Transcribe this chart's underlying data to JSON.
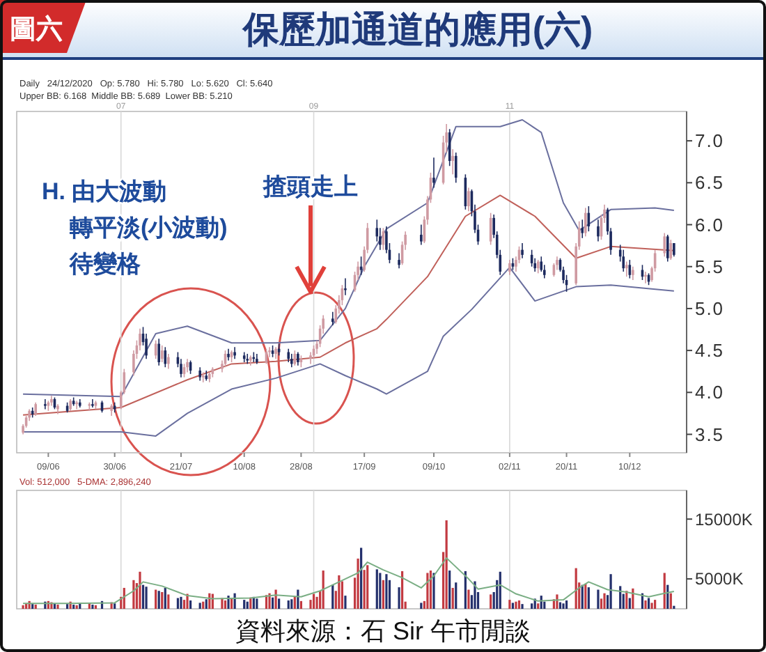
{
  "chart_data": [
    {
      "type": "candlestick",
      "title": "保歷加通道的應用(六)",
      "annotations": [
        "圖六",
        "Daily   24/12/2020   Op: 5.780   Hi: 5.780   Lo: 5.620   Cl: 5.640",
        "Upper BB: 6.168  Middle BB: 5.689  Lower BB: 5.210",
        "H. 由大波動",
        "轉平淡(小波動)",
        "待變格",
        {
          "text": "揸頭走上",
          "x": "2020-08-31",
          "y": 5.2
        }
      ],
      "x": [
        "2020-06-01",
        "2020-06-02",
        "2020-06-03",
        "2020-06-04",
        "2020-06-05",
        "2020-06-08",
        "2020-06-09",
        "2020-06-10",
        "2020-06-11",
        "2020-06-12",
        "2020-06-15",
        "2020-06-16",
        "2020-06-17",
        "2020-06-18",
        "2020-06-19",
        "2020-06-22",
        "2020-06-23",
        "2020-06-24",
        "2020-06-26",
        "2020-06-29",
        "2020-06-30",
        "2020-07-02",
        "2020-07-03",
        "2020-07-06",
        "2020-07-07",
        "2020-07-08",
        "2020-07-09",
        "2020-07-10",
        "2020-07-13",
        "2020-07-14",
        "2020-07-15",
        "2020-07-16",
        "2020-07-17",
        "2020-07-20",
        "2020-07-21",
        "2020-07-22",
        "2020-07-23",
        "2020-07-24",
        "2020-07-27",
        "2020-07-28",
        "2020-07-29",
        "2020-07-30",
        "2020-07-31",
        "2020-08-03",
        "2020-08-04",
        "2020-08-05",
        "2020-08-06",
        "2020-08-07",
        "2020-08-10",
        "2020-08-11",
        "2020-08-12",
        "2020-08-13",
        "2020-08-14",
        "2020-08-17",
        "2020-08-18",
        "2020-08-19",
        "2020-08-20",
        "2020-08-21",
        "2020-08-24",
        "2020-08-25",
        "2020-08-26",
        "2020-08-27",
        "2020-08-28",
        "2020-08-31",
        "2020-09-01",
        "2020-09-02",
        "2020-09-03",
        "2020-09-04",
        "2020-09-07",
        "2020-09-08",
        "2020-09-09",
        "2020-09-10",
        "2020-09-11",
        "2020-09-14",
        "2020-09-15",
        "2020-09-16",
        "2020-09-17",
        "2020-09-18",
        "2020-09-21",
        "2020-09-22",
        "2020-09-23",
        "2020-09-24",
        "2020-09-25",
        "2020-09-28",
        "2020-09-29",
        "2020-09-30",
        "2020-10-05",
        "2020-10-06",
        "2020-10-07",
        "2020-10-08",
        "2020-10-09",
        "2020-10-12",
        "2020-10-13",
        "2020-10-14",
        "2020-10-15",
        "2020-10-16",
        "2020-10-19",
        "2020-10-20",
        "2020-10-21",
        "2020-10-22",
        "2020-10-23",
        "2020-10-27",
        "2020-10-28",
        "2020-10-29",
        "2020-10-30",
        "2020-11-02",
        "2020-11-03",
        "2020-11-04",
        "2020-11-05",
        "2020-11-06",
        "2020-11-09",
        "2020-11-10",
        "2020-11-11",
        "2020-11-12",
        "2020-11-13",
        "2020-11-16",
        "2020-11-17",
        "2020-11-18",
        "2020-11-19",
        "2020-11-20",
        "2020-11-23",
        "2020-11-24",
        "2020-11-25",
        "2020-11-26",
        "2020-11-27",
        "2020-11-30",
        "2020-12-01",
        "2020-12-02",
        "2020-12-03",
        "2020-12-04",
        "2020-12-07",
        "2020-12-08",
        "2020-12-09",
        "2020-12-10",
        "2020-12-11",
        "2020-12-14",
        "2020-12-15",
        "2020-12-16",
        "2020-12-17",
        "2020-12-18",
        "2020-12-21",
        "2020-12-22",
        "2020-12-23",
        "2020-12-24"
      ],
      "ohlc": [
        [
          3.52,
          3.62,
          3.5,
          3.6
        ],
        [
          3.6,
          3.72,
          3.58,
          3.7
        ],
        [
          3.7,
          3.8,
          3.66,
          3.78
        ],
        [
          3.78,
          3.82,
          3.7,
          3.74
        ],
        [
          3.74,
          3.88,
          3.72,
          3.86
        ],
        [
          3.86,
          3.92,
          3.8,
          3.84
        ],
        [
          3.84,
          3.9,
          3.78,
          3.88
        ],
        [
          3.88,
          3.96,
          3.84,
          3.92
        ],
        [
          3.92,
          3.94,
          3.8,
          3.82
        ],
        [
          3.8,
          3.86,
          3.74,
          3.84
        ],
        [
          3.84,
          3.88,
          3.76,
          3.78
        ],
        [
          3.8,
          3.92,
          3.78,
          3.9
        ],
        [
          3.9,
          3.94,
          3.84,
          3.86
        ],
        [
          3.86,
          3.9,
          3.8,
          3.88
        ],
        [
          3.88,
          3.92,
          3.82,
          3.84
        ],
        [
          3.84,
          3.88,
          3.78,
          3.86
        ],
        [
          3.86,
          3.92,
          3.82,
          3.84
        ],
        [
          3.84,
          3.9,
          3.8,
          3.88
        ],
        [
          3.88,
          3.9,
          3.76,
          3.78
        ],
        [
          3.78,
          3.86,
          3.72,
          3.84
        ],
        [
          3.84,
          3.88,
          3.76,
          3.8
        ],
        [
          3.82,
          4.02,
          3.8,
          4.0
        ],
        [
          4.0,
          4.28,
          3.98,
          4.24
        ],
        [
          4.24,
          4.5,
          4.2,
          4.46
        ],
        [
          4.46,
          4.62,
          4.4,
          4.56
        ],
        [
          4.56,
          4.76,
          4.5,
          4.7
        ],
        [
          4.7,
          4.78,
          4.56,
          4.6
        ],
        [
          4.64,
          4.7,
          4.4,
          4.44
        ],
        [
          4.44,
          4.62,
          4.4,
          4.58
        ],
        [
          4.58,
          4.64,
          4.32,
          4.36
        ],
        [
          4.4,
          4.56,
          4.36,
          4.5
        ],
        [
          4.5,
          4.54,
          4.3,
          4.34
        ],
        [
          4.34,
          4.46,
          4.28,
          4.42
        ],
        [
          4.42,
          4.48,
          4.3,
          4.34
        ],
        [
          4.34,
          4.4,
          4.18,
          4.22
        ],
        [
          4.22,
          4.34,
          4.18,
          4.3
        ],
        [
          4.3,
          4.4,
          4.24,
          4.36
        ],
        [
          4.36,
          4.38,
          4.22,
          4.26
        ],
        [
          4.26,
          4.3,
          4.14,
          4.18
        ],
        [
          4.18,
          4.24,
          4.12,
          4.2
        ],
        [
          4.2,
          4.26,
          4.14,
          4.16
        ],
        [
          4.16,
          4.24,
          4.12,
          4.22
        ],
        [
          4.22,
          4.3,
          4.18,
          4.28
        ],
        [
          4.28,
          4.38,
          4.24,
          4.34
        ],
        [
          4.34,
          4.5,
          4.3,
          4.46
        ],
        [
          4.46,
          4.52,
          4.38,
          4.42
        ],
        [
          4.42,
          4.5,
          4.36,
          4.48
        ],
        [
          4.48,
          4.54,
          4.4,
          4.44
        ],
        [
          4.44,
          4.48,
          4.36,
          4.4
        ],
        [
          4.4,
          4.46,
          4.34,
          4.38
        ],
        [
          4.38,
          4.44,
          4.32,
          4.42
        ],
        [
          4.42,
          4.48,
          4.36,
          4.4
        ],
        [
          4.4,
          4.46,
          4.34,
          4.36
        ],
        [
          4.36,
          4.52,
          4.34,
          4.48
        ],
        [
          4.48,
          4.54,
          4.42,
          4.5
        ],
        [
          4.5,
          4.56,
          4.42,
          4.46
        ],
        [
          4.46,
          4.54,
          4.4,
          4.52
        ],
        [
          4.52,
          4.58,
          4.44,
          4.48
        ],
        [
          4.48,
          4.52,
          4.36,
          4.4
        ],
        [
          4.4,
          4.46,
          4.3,
          4.34
        ],
        [
          4.34,
          4.5,
          4.32,
          4.46
        ],
        [
          4.46,
          4.48,
          4.32,
          4.36
        ],
        [
          4.36,
          4.44,
          4.3,
          4.4
        ],
        [
          4.4,
          4.48,
          4.34,
          4.44
        ],
        [
          4.44,
          4.56,
          4.4,
          4.52
        ],
        [
          4.52,
          4.62,
          4.46,
          4.58
        ],
        [
          4.58,
          4.8,
          4.54,
          4.76
        ],
        [
          4.76,
          4.92,
          4.7,
          4.88
        ],
        [
          4.88,
          4.96,
          4.8,
          4.84
        ],
        [
          4.84,
          5.04,
          4.82,
          5.0
        ],
        [
          5.0,
          5.16,
          4.94,
          5.1
        ],
        [
          5.1,
          5.28,
          5.04,
          5.24
        ],
        [
          5.24,
          5.36,
          5.16,
          5.22
        ],
        [
          5.22,
          5.44,
          5.2,
          5.4
        ],
        [
          5.4,
          5.56,
          5.34,
          5.5
        ],
        [
          5.5,
          5.62,
          5.4,
          5.46
        ],
        [
          5.46,
          5.74,
          5.44,
          5.7
        ],
        [
          5.7,
          6.02,
          5.66,
          5.96
        ],
        [
          5.96,
          6.06,
          5.8,
          5.86
        ],
        [
          5.86,
          5.96,
          5.7,
          5.76
        ],
        [
          5.76,
          5.96,
          5.7,
          5.92
        ],
        [
          5.92,
          5.98,
          5.66,
          5.7
        ],
        [
          5.7,
          5.78,
          5.54,
          5.58
        ],
        [
          5.58,
          5.66,
          5.48,
          5.52
        ],
        [
          5.54,
          5.8,
          5.52,
          5.76
        ],
        [
          5.76,
          5.92,
          5.7,
          5.88
        ],
        [
          5.88,
          6.0,
          5.76,
          5.8
        ],
        [
          5.8,
          6.1,
          5.78,
          6.06
        ],
        [
          6.06,
          6.34,
          6.0,
          6.3
        ],
        [
          6.3,
          6.62,
          6.26,
          6.56
        ],
        [
          6.56,
          6.8,
          6.44,
          6.5
        ],
        [
          6.5,
          7.06,
          6.48,
          6.98
        ],
        [
          6.98,
          7.2,
          6.86,
          7.1
        ],
        [
          7.1,
          7.14,
          6.7,
          6.76
        ],
        [
          6.76,
          6.9,
          6.6,
          6.82
        ],
        [
          6.82,
          6.86,
          6.5,
          6.56
        ],
        [
          6.56,
          6.6,
          6.18,
          6.22
        ],
        [
          6.22,
          6.44,
          6.16,
          6.4
        ],
        [
          6.4,
          6.42,
          6.1,
          6.16
        ],
        [
          6.16,
          6.24,
          5.9,
          5.94
        ],
        [
          5.94,
          6.0,
          5.76,
          5.8
        ],
        [
          5.8,
          6.14,
          5.76,
          6.08
        ],
        [
          6.08,
          6.12,
          5.84,
          5.88
        ],
        [
          5.88,
          5.92,
          5.6,
          5.64
        ],
        [
          5.64,
          5.7,
          5.4,
          5.44
        ],
        [
          5.44,
          5.58,
          5.4,
          5.54
        ],
        [
          5.54,
          5.6,
          5.46,
          5.5
        ],
        [
          5.5,
          5.62,
          5.44,
          5.58
        ],
        [
          5.58,
          5.74,
          5.54,
          5.7
        ],
        [
          5.7,
          5.78,
          5.6,
          5.64
        ],
        [
          5.64,
          5.7,
          5.5,
          5.54
        ],
        [
          5.54,
          5.6,
          5.44,
          5.48
        ],
        [
          5.48,
          5.58,
          5.42,
          5.56
        ],
        [
          5.56,
          5.62,
          5.44,
          5.46
        ],
        [
          5.46,
          5.52,
          5.36,
          5.4
        ],
        [
          5.4,
          5.54,
          5.38,
          5.52
        ],
        [
          5.52,
          5.62,
          5.46,
          5.58
        ],
        [
          5.58,
          5.6,
          5.44,
          5.46
        ],
        [
          5.46,
          5.5,
          5.3,
          5.34
        ],
        [
          5.34,
          5.4,
          5.2,
          5.28
        ],
        [
          5.3,
          5.78,
          5.28,
          5.74
        ],
        [
          5.74,
          6.04,
          5.7,
          5.96
        ],
        [
          5.96,
          6.06,
          5.84,
          5.9
        ],
        [
          5.9,
          6.2,
          5.86,
          6.14
        ],
        [
          6.14,
          6.22,
          5.92,
          5.98
        ],
        [
          5.98,
          6.06,
          5.8,
          5.86
        ],
        [
          5.86,
          6.12,
          5.82,
          6.08
        ],
        [
          6.08,
          6.24,
          6.02,
          6.18
        ],
        [
          6.18,
          6.2,
          5.88,
          5.92
        ],
        [
          5.92,
          5.96,
          5.64,
          5.7
        ],
        [
          5.7,
          5.76,
          5.56,
          5.62
        ],
        [
          5.62,
          5.7,
          5.44,
          5.48
        ],
        [
          5.48,
          5.56,
          5.38,
          5.52
        ],
        [
          5.52,
          5.58,
          5.36,
          5.4
        ],
        [
          5.4,
          5.5,
          5.34,
          5.46
        ],
        [
          5.46,
          5.52,
          5.34,
          5.38
        ],
        [
          5.38,
          5.44,
          5.3,
          5.4
        ],
        [
          5.4,
          5.42,
          5.28,
          5.32
        ],
        [
          5.34,
          5.5,
          5.32,
          5.48
        ],
        [
          5.48,
          5.7,
          5.44,
          5.66
        ],
        [
          5.66,
          5.9,
          5.62,
          5.86
        ],
        [
          5.86,
          5.88,
          5.56,
          5.6
        ],
        [
          5.6,
          5.82,
          5.58,
          5.78
        ],
        [
          5.78,
          5.78,
          5.62,
          5.64
        ]
      ],
      "colors": [
        "#cf9aa2",
        "#cf9aa2",
        "#cf9aa2",
        "#1d2a5e",
        "#cf9aa2",
        "#1d2a5e",
        "#cf9aa2",
        "#cf9aa2",
        "#1d2a5e",
        "#cf9aa2",
        "#1d2a5e",
        "#cf9aa2",
        "#1d2a5e",
        "#cf9aa2",
        "#1d2a5e",
        "#cf9aa2",
        "#1d2a5e",
        "#cf9aa2",
        "#1d2a5e",
        "#cf9aa2",
        "#1d2a5e",
        "#cf9aa2",
        "#cf9aa2",
        "#cf9aa2",
        "#cf9aa2",
        "#cf9aa2",
        "#1d2a5e",
        "#1d2a5e",
        "#cf9aa2",
        "#1d2a5e",
        "#cf9aa2",
        "#1d2a5e",
        "#cf9aa2",
        "#1d2a5e",
        "#1d2a5e",
        "#cf9aa2",
        "#cf9aa2",
        "#1d2a5e",
        "#1d2a5e",
        "#cf9aa2",
        "#1d2a5e",
        "#cf9aa2",
        "#cf9aa2",
        "#cf9aa2",
        "#cf9aa2",
        "#1d2a5e",
        "#cf9aa2",
        "#1d2a5e",
        "#1d2a5e",
        "#1d2a5e",
        "#cf9aa2",
        "#1d2a5e",
        "#1d2a5e",
        "#cf9aa2",
        "#cf9aa2",
        "#1d2a5e",
        "#cf9aa2",
        "#1d2a5e",
        "#1d2a5e",
        "#1d2a5e",
        "#cf9aa2",
        "#1d2a5e",
        "#cf9aa2",
        "#cf9aa2",
        "#cf9aa2",
        "#cf9aa2",
        "#cf9aa2",
        "#cf9aa2",
        "#1d2a5e",
        "#cf9aa2",
        "#cf9aa2",
        "#cf9aa2",
        "#1d2a5e",
        "#cf9aa2",
        "#cf9aa2",
        "#1d2a5e",
        "#cf9aa2",
        "#cf9aa2",
        "#1d2a5e",
        "#1d2a5e",
        "#cf9aa2",
        "#1d2a5e",
        "#1d2a5e",
        "#1d2a5e",
        "#cf9aa2",
        "#cf9aa2",
        "#1d2a5e",
        "#cf9aa2",
        "#cf9aa2",
        "#cf9aa2",
        "#1d2a5e",
        "#cf9aa2",
        "#cf9aa2",
        "#1d2a5e",
        "#cf9aa2",
        "#1d2a5e",
        "#1d2a5e",
        "#cf9aa2",
        "#1d2a5e",
        "#1d2a5e",
        "#1d2a5e",
        "#cf9aa2",
        "#1d2a5e",
        "#1d2a5e",
        "#1d2a5e",
        "#cf9aa2",
        "#1d2a5e",
        "#cf9aa2",
        "#cf9aa2",
        "#1d2a5e",
        "#1d2a5e",
        "#1d2a5e",
        "#cf9aa2",
        "#1d2a5e",
        "#1d2a5e",
        "#cf9aa2",
        "#cf9aa2",
        "#1d2a5e",
        "#1d2a5e",
        "#1d2a5e",
        "#cf9aa2",
        "#cf9aa2",
        "#1d2a5e",
        "#cf9aa2",
        "#1d2a5e",
        "#1d2a5e",
        "#cf9aa2",
        "#cf9aa2",
        "#1d2a5e",
        "#1d2a5e",
        "#1d2a5e",
        "#1d2a5e",
        "#cf9aa2",
        "#1d2a5e",
        "#cf9aa2",
        "#1d2a5e",
        "#cf9aa2",
        "#1d2a5e",
        "#cf9aa2",
        "#cf9aa2",
        "#cf9aa2",
        "#1d2a5e",
        "#cf9aa2",
        "#1d2a5e"
      ],
      "series": [
        {
          "type": "line",
          "color": "#6a6f9e",
          "x": [
            "2020-06-01",
            "2020-07-02",
            "2020-07-13",
            "2020-07-23",
            "2020-08-06",
            "2020-08-20",
            "2020-09-03",
            "2020-09-11",
            "2020-09-17",
            "2020-09-24",
            "2020-10-07",
            "2020-10-16",
            "2020-10-30",
            "2020-11-06",
            "2020-11-12",
            "2020-11-19",
            "2020-11-24",
            "2020-12-04",
            "2020-12-18",
            "2020-12-24"
          ],
          "values": [
            3.98,
            3.95,
            4.7,
            4.79,
            4.59,
            4.59,
            4.62,
            5.0,
            5.5,
            5.95,
            6.26,
            7.17,
            7.17,
            7.25,
            7.1,
            6.26,
            5.93,
            6.18,
            6.2,
            6.17
          ]
        },
        {
          "type": "line",
          "color": "#c0605a",
          "x": [
            "2020-06-01",
            "2020-07-02",
            "2020-07-23",
            "2020-08-06",
            "2020-08-20",
            "2020-09-03",
            "2020-09-11",
            "2020-09-21",
            "2020-09-24",
            "2020-10-07",
            "2020-10-19",
            "2020-10-30",
            "2020-11-10",
            "2020-11-23",
            "2020-12-04",
            "2020-12-24"
          ],
          "values": [
            3.73,
            3.82,
            4.15,
            4.34,
            4.37,
            4.42,
            4.59,
            4.76,
            4.87,
            5.38,
            6.1,
            6.35,
            6.1,
            5.6,
            5.74,
            5.69
          ]
        },
        {
          "type": "line",
          "color": "#6a6f9e",
          "x": [
            "2020-06-01",
            "2020-07-02",
            "2020-07-13",
            "2020-07-23",
            "2020-08-06",
            "2020-08-20",
            "2020-09-03",
            "2020-09-11",
            "2020-09-21",
            "2020-09-24",
            "2020-10-07",
            "2020-10-12",
            "2020-10-21",
            "2020-11-02",
            "2020-11-10",
            "2020-11-23",
            "2020-12-04",
            "2020-12-24"
          ],
          "values": [
            3.53,
            3.53,
            3.48,
            3.75,
            4.04,
            4.17,
            4.34,
            4.2,
            4.04,
            3.98,
            4.25,
            4.67,
            4.99,
            5.49,
            5.09,
            5.26,
            5.28,
            5.21
          ]
        }
      ],
      "xlim": [
        "2020-05-30",
        "2020-12-28"
      ],
      "xticks": [
        {
          "value": "2020-06-09",
          "label": "09/06"
        },
        {
          "value": "2020-06-30",
          "label": "30/06"
        },
        {
          "value": "2020-07-21",
          "label": "21/07"
        },
        {
          "value": "2020-08-10",
          "label": "10/08"
        },
        {
          "value": "2020-08-28",
          "label": "28/08"
        },
        {
          "value": "2020-09-17",
          "label": "17/09"
        },
        {
          "value": "2020-10-09",
          "label": "09/10"
        },
        {
          "value": "2020-11-02",
          "label": "02/11"
        },
        {
          "value": "2020-11-20",
          "label": "20/11"
        },
        {
          "value": "2020-12-10",
          "label": "10/12"
        }
      ],
      "ylim": [
        3.28,
        7.35
      ],
      "yticks": [
        {
          "value": 3.5,
          "label": "3.5"
        },
        {
          "value": 4,
          "label": "4.0"
        },
        {
          "value": 4.5,
          "label": "4.5"
        },
        {
          "value": 5,
          "label": "5.0"
        },
        {
          "value": 5.5,
          "label": "5.5"
        },
        {
          "value": 6,
          "label": "6.0"
        },
        {
          "value": 6.5,
          "label": "6.5"
        },
        {
          "value": 7,
          "label": "7.0"
        }
      ],
      "ref_lines": [
        {
          "axis": "x",
          "value": "2020-07-02",
          "label": "07",
          "color": "#d8d8d8"
        },
        {
          "axis": "x",
          "value": "2020-09-01",
          "label": "09",
          "color": "#d8d8d8"
        },
        {
          "axis": "x",
          "value": "2020-11-02",
          "label": "11",
          "color": "#d8d8d8"
        }
      ]
    },
    {
      "type": "bar",
      "tick_labels": "y",
      "annotations": [
        "Vol: 512,000   5-DMA: 2,896,240",
        "資料來源：石 Sir 午市閒談"
      ],
      "x": [
        "2020-06-01",
        "2020-06-02",
        "2020-06-03",
        "2020-06-04",
        "2020-06-05",
        "2020-06-08",
        "2020-06-09",
        "2020-06-10",
        "2020-06-11",
        "2020-06-12",
        "2020-06-15",
        "2020-06-16",
        "2020-06-17",
        "2020-06-18",
        "2020-06-19",
        "2020-06-22",
        "2020-06-23",
        "2020-06-24",
        "2020-06-26",
        "2020-06-29",
        "2020-06-30",
        "2020-07-02",
        "2020-07-03",
        "2020-07-06",
        "2020-07-07",
        "2020-07-08",
        "2020-07-09",
        "2020-07-10",
        "2020-07-13",
        "2020-07-14",
        "2020-07-15",
        "2020-07-16",
        "2020-07-17",
        "2020-07-20",
        "2020-07-21",
        "2020-07-22",
        "2020-07-23",
        "2020-07-24",
        "2020-07-27",
        "2020-07-28",
        "2020-07-29",
        "2020-07-30",
        "2020-07-31",
        "2020-08-03",
        "2020-08-04",
        "2020-08-05",
        "2020-08-06",
        "2020-08-07",
        "2020-08-10",
        "2020-08-11",
        "2020-08-12",
        "2020-08-13",
        "2020-08-14",
        "2020-08-17",
        "2020-08-18",
        "2020-08-19",
        "2020-08-20",
        "2020-08-21",
        "2020-08-24",
        "2020-08-25",
        "2020-08-26",
        "2020-08-27",
        "2020-08-28",
        "2020-08-31",
        "2020-09-01",
        "2020-09-02",
        "2020-09-03",
        "2020-09-04",
        "2020-09-07",
        "2020-09-08",
        "2020-09-09",
        "2020-09-10",
        "2020-09-11",
        "2020-09-14",
        "2020-09-15",
        "2020-09-16",
        "2020-09-17",
        "2020-09-18",
        "2020-09-21",
        "2020-09-22",
        "2020-09-23",
        "2020-09-24",
        "2020-09-25",
        "2020-09-28",
        "2020-09-29",
        "2020-09-30",
        "2020-10-05",
        "2020-10-06",
        "2020-10-07",
        "2020-10-08",
        "2020-10-09",
        "2020-10-12",
        "2020-10-13",
        "2020-10-14",
        "2020-10-15",
        "2020-10-16",
        "2020-10-19",
        "2020-10-20",
        "2020-10-21",
        "2020-10-22",
        "2020-10-23",
        "2020-10-27",
        "2020-10-28",
        "2020-10-29",
        "2020-10-30",
        "2020-11-02",
        "2020-11-03",
        "2020-11-04",
        "2020-11-05",
        "2020-11-06",
        "2020-11-09",
        "2020-11-10",
        "2020-11-11",
        "2020-11-12",
        "2020-11-13",
        "2020-11-16",
        "2020-11-17",
        "2020-11-18",
        "2020-11-19",
        "2020-11-20",
        "2020-11-23",
        "2020-11-24",
        "2020-11-25",
        "2020-11-26",
        "2020-11-27",
        "2020-11-30",
        "2020-12-01",
        "2020-12-02",
        "2020-12-03",
        "2020-12-04",
        "2020-12-07",
        "2020-12-08",
        "2020-12-09",
        "2020-12-10",
        "2020-12-11",
        "2020-12-14",
        "2020-12-15",
        "2020-12-16",
        "2020-12-17",
        "2020-12-18",
        "2020-12-21",
        "2020-12-22",
        "2020-12-23",
        "2020-12-24"
      ],
      "series": [
        {
          "type": "bar",
          "values": [
            600,
            900,
            1300,
            800,
            700,
            1200,
            1300,
            1100,
            900,
            700,
            800,
            1200,
            700,
            600,
            900,
            1000,
            700,
            600,
            1300,
            1100,
            900,
            2000,
            3500,
            4800,
            4300,
            6200,
            4000,
            3700,
            3200,
            3000,
            2800,
            3500,
            2400,
            1800,
            2000,
            1500,
            2500,
            1400,
            1000,
            1200,
            1600,
            2600,
            2500,
            1800,
            1400,
            2200,
            1700,
            2600,
            1500,
            1200,
            1900,
            2000,
            1700,
            2300,
            2600,
            1900,
            3200,
            1700,
            1400,
            1600,
            2000,
            3200,
            1300,
            1500,
            2500,
            2000,
            3000,
            6400,
            4000,
            3000,
            5600,
            4600,
            2200,
            5200,
            8400,
            10200,
            6500,
            7300,
            6600,
            6000,
            4800,
            5800,
            4800,
            3600,
            6300,
            1200,
            1000,
            1300,
            6000,
            6400,
            6000,
            9500,
            14800,
            6400,
            3500,
            4400,
            6300,
            3200,
            2300,
            4600,
            2800,
            2400,
            2800,
            4800,
            6200,
            1500,
            1000,
            1200,
            1400,
            800,
            900,
            1700,
            900,
            2200,
            1200,
            1600,
            2400,
            1100,
            900,
            1400,
            6800,
            4400,
            4000,
            4200,
            3600,
            3200,
            1700,
            2600,
            2300,
            5800,
            3800,
            2500,
            3000,
            1800,
            3400,
            2600,
            1400,
            1800,
            1000,
            1500,
            6000,
            4000,
            2600,
            500
          ],
          "colors": [
            "#c23a41",
            "#c23a41",
            "#c23a41",
            "#24306c",
            "#c23a41",
            "#24306c",
            "#c23a41",
            "#c23a41",
            "#24306c",
            "#c23a41",
            "#24306c",
            "#c23a41",
            "#24306c",
            "#c23a41",
            "#24306c",
            "#c23a41",
            "#24306c",
            "#c23a41",
            "#24306c",
            "#c23a41",
            "#24306c",
            "#c23a41",
            "#c23a41",
            "#c23a41",
            "#c23a41",
            "#c23a41",
            "#24306c",
            "#24306c",
            "#c23a41",
            "#24306c",
            "#c23a41",
            "#24306c",
            "#c23a41",
            "#24306c",
            "#24306c",
            "#c23a41",
            "#c23a41",
            "#24306c",
            "#24306c",
            "#c23a41",
            "#24306c",
            "#c23a41",
            "#c23a41",
            "#c23a41",
            "#c23a41",
            "#24306c",
            "#c23a41",
            "#24306c",
            "#24306c",
            "#24306c",
            "#c23a41",
            "#24306c",
            "#24306c",
            "#c23a41",
            "#c23a41",
            "#24306c",
            "#c23a41",
            "#24306c",
            "#24306c",
            "#24306c",
            "#c23a41",
            "#24306c",
            "#c23a41",
            "#c23a41",
            "#c23a41",
            "#c23a41",
            "#c23a41",
            "#c23a41",
            "#24306c",
            "#c23a41",
            "#c23a41",
            "#c23a41",
            "#24306c",
            "#c23a41",
            "#c23a41",
            "#24306c",
            "#c23a41",
            "#c23a41",
            "#24306c",
            "#24306c",
            "#c23a41",
            "#24306c",
            "#24306c",
            "#24306c",
            "#c23a41",
            "#c23a41",
            "#24306c",
            "#c23a41",
            "#c23a41",
            "#c23a41",
            "#24306c",
            "#c23a41",
            "#c23a41",
            "#24306c",
            "#c23a41",
            "#24306c",
            "#24306c",
            "#c23a41",
            "#24306c",
            "#24306c",
            "#24306c",
            "#c23a41",
            "#24306c",
            "#24306c",
            "#24306c",
            "#c23a41",
            "#24306c",
            "#c23a41",
            "#c23a41",
            "#24306c",
            "#24306c",
            "#24306c",
            "#c23a41",
            "#24306c",
            "#24306c",
            "#c23a41",
            "#c23a41",
            "#24306c",
            "#24306c",
            "#24306c",
            "#c23a41",
            "#c23a41",
            "#24306c",
            "#c23a41",
            "#24306c",
            "#24306c",
            "#c23a41",
            "#c23a41",
            "#24306c",
            "#24306c",
            "#24306c",
            "#24306c",
            "#c23a41",
            "#24306c",
            "#c23a41",
            "#24306c",
            "#c23a41",
            "#24306c",
            "#c23a41",
            "#c23a41",
            "#c23a41",
            "#24306c",
            "#c23a41",
            "#24306c"
          ]
        },
        {
          "type": "line",
          "color": "#7aae84",
          "x": [
            "2020-06-01",
            "2020-06-15",
            "2020-06-30",
            "2020-07-06",
            "2020-07-09",
            "2020-07-15",
            "2020-07-23",
            "2020-07-31",
            "2020-08-12",
            "2020-08-20",
            "2020-08-28",
            "2020-09-03",
            "2020-09-09",
            "2020-09-15",
            "2020-09-18",
            "2020-09-23",
            "2020-09-29",
            "2020-10-05",
            "2020-10-09",
            "2020-10-13",
            "2020-10-15",
            "2020-10-20",
            "2020-10-23",
            "2020-10-30",
            "2020-11-04",
            "2020-11-11",
            "2020-11-19",
            "2020-11-24",
            "2020-11-27",
            "2020-12-03",
            "2020-12-09",
            "2020-12-16",
            "2020-12-21",
            "2020-12-24"
          ],
          "values": [
            900,
            900,
            1000,
            3000,
            4500,
            3800,
            2200,
            1700,
            1800,
            2300,
            2000,
            3000,
            4500,
            6000,
            7800,
            6500,
            5200,
            3500,
            5500,
            8500,
            7500,
            5000,
            3300,
            4000,
            2500,
            1300,
            1500,
            3500,
            4500,
            3200,
            2800,
            2000,
            2600,
            2900
          ]
        }
      ],
      "xlim": [
        "2020-05-30",
        "2020-12-28"
      ],
      "ylim": [
        0,
        19800
      ],
      "yticks": [
        {
          "value": 5000,
          "label": "5000K"
        },
        {
          "value": 15000,
          "label": "15000K"
        }
      ],
      "ref_lines": [
        {
          "axis": "x",
          "value": "2020-07-02",
          "color": "#d8d8d8"
        },
        {
          "axis": "x",
          "value": "2020-09-01",
          "color": "#d8d8d8"
        },
        {
          "axis": "x",
          "value": "2020-11-02",
          "color": "#d8d8d8"
        }
      ]
    }
  ]
}
